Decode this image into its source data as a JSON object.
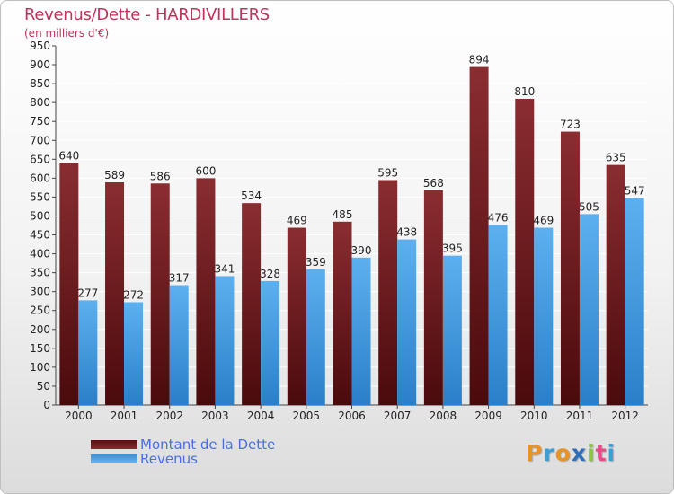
{
  "chart_data": {
    "type": "bar",
    "title": "Revenus/Dette - HARDIVILLERS",
    "subtitle": "(en milliers d'€)",
    "categories": [
      "2000",
      "2001",
      "2002",
      "2003",
      "2004",
      "2005",
      "2006",
      "2007",
      "2008",
      "2009",
      "2010",
      "2011",
      "2012"
    ],
    "series": [
      {
        "name": "Montant de la Dette",
        "color": "#7a1f22",
        "values": [
          640,
          589,
          586,
          600,
          534,
          469,
          485,
          595,
          568,
          894,
          810,
          723,
          635
        ]
      },
      {
        "name": "Revenus",
        "color": "#4aa3e8",
        "values": [
          277,
          272,
          317,
          341,
          328,
          359,
          390,
          438,
          395,
          476,
          469,
          505,
          547
        ]
      }
    ],
    "ylim": [
      0,
      950
    ],
    "yticks": [
      0,
      50,
      100,
      150,
      200,
      250,
      300,
      350,
      400,
      450,
      500,
      550,
      600,
      650,
      700,
      750,
      800,
      850,
      900,
      950
    ],
    "grid": true,
    "legend_position": "bottom-left"
  },
  "logo": {
    "letters": [
      "P",
      "r",
      "o",
      "x",
      "i",
      "t",
      "i"
    ],
    "colors": [
      "#e8922a",
      "#3aa0d8",
      "#e8922a",
      "#2e6fb8",
      "#8cc63f",
      "#e84a8a",
      "#3aa0d8"
    ]
  }
}
